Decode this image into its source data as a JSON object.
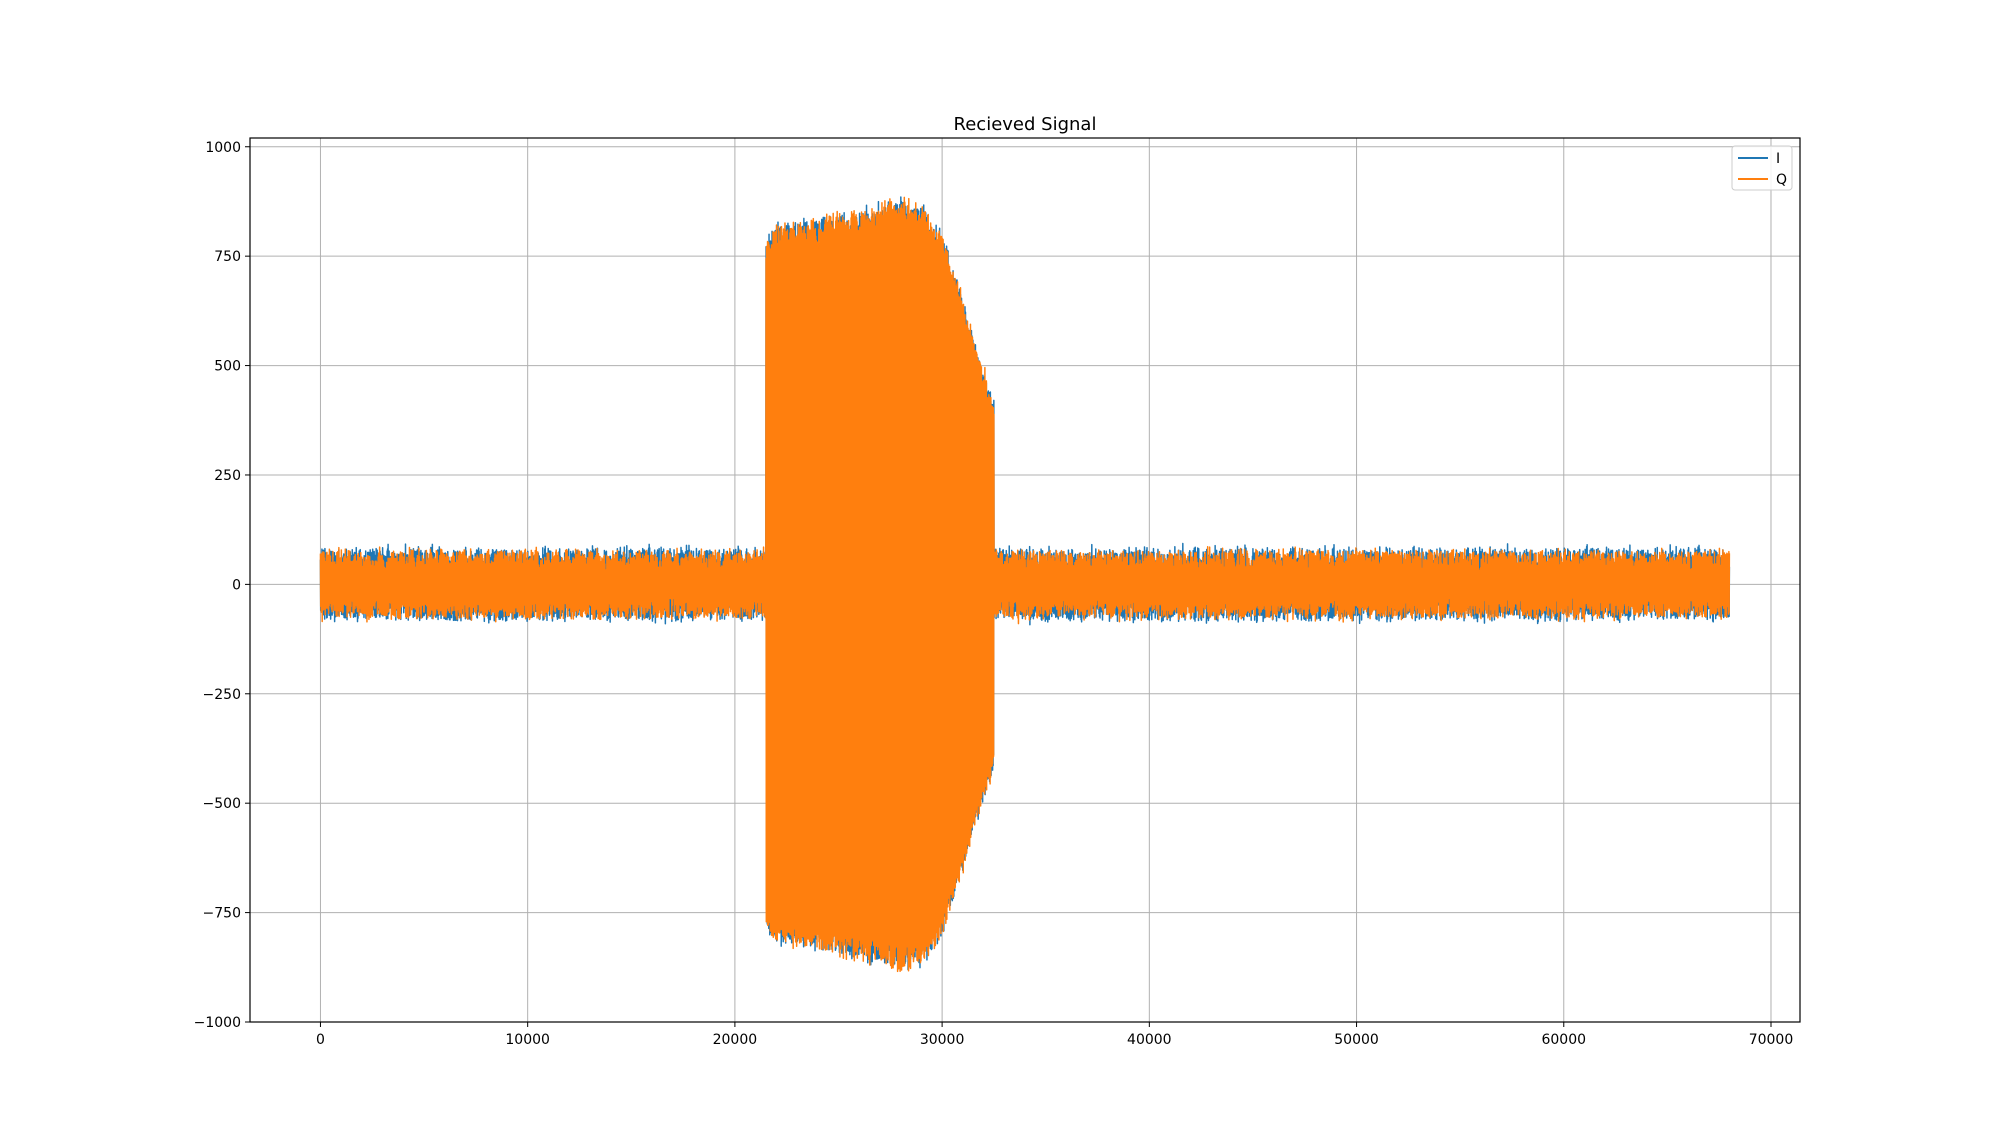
{
  "chart_data": {
    "type": "line",
    "title": "Recieved Signal",
    "xlabel": "",
    "ylabel": "",
    "xlim": [
      -3400,
      71400
    ],
    "ylim": [
      -1000,
      1020
    ],
    "xticks": [
      0,
      10000,
      20000,
      30000,
      40000,
      50000,
      60000,
      70000
    ],
    "xtick_labels": [
      "0",
      "10000",
      "20000",
      "30000",
      "40000",
      "50000",
      "60000",
      "70000"
    ],
    "yticks": [
      -1000,
      -750,
      -500,
      -250,
      0,
      250,
      500,
      750,
      1000
    ],
    "ytick_labels": [
      "−1000",
      "−750",
      "−500",
      "−250",
      "0",
      "250",
      "500",
      "750",
      "1000"
    ],
    "grid": true,
    "legend_position": "top-right",
    "n_samples": 68000,
    "noise_amplitude": 75,
    "burst": {
      "start": 21500,
      "end": 32500,
      "peak_amplitude": 900,
      "envelope": [
        {
          "x": 21500,
          "amp": 790
        },
        {
          "x": 22000,
          "amp": 820
        },
        {
          "x": 24000,
          "amp": 830
        },
        {
          "x": 26000,
          "amp": 850
        },
        {
          "x": 28000,
          "amp": 880
        },
        {
          "x": 29000,
          "amp": 870
        },
        {
          "x": 30000,
          "amp": 800
        },
        {
          "x": 31000,
          "amp": 650
        },
        {
          "x": 32000,
          "amp": 480
        },
        {
          "x": 32500,
          "amp": 420
        }
      ]
    },
    "series": [
      {
        "name": "I",
        "color": "#1f77b4"
      },
      {
        "name": "Q",
        "color": "#ff7f0e"
      }
    ]
  }
}
